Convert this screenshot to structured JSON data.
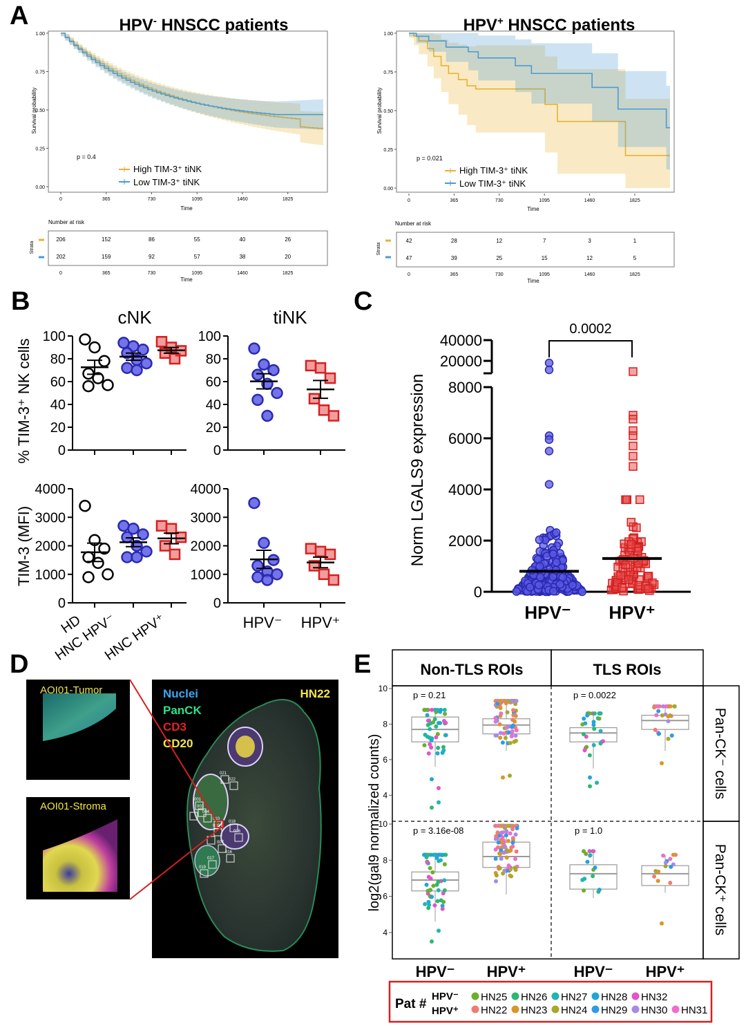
{
  "panel_letters": {
    "A": "A",
    "B": "B",
    "C": "C",
    "D": "D",
    "E": "E"
  },
  "colors": {
    "high": "#E8B230",
    "low": "#4A9BD4",
    "hd": "#000000",
    "hpvneg": "#5A5AE6",
    "hpvpos": "#E84C4C",
    "red_frame": "#D42020"
  },
  "panel_A": {
    "km": [
      {
        "title_pre": "HPV",
        "title_sup": "-",
        "title_post": " HNSCC patients",
        "ylabel": "Survival probability",
        "xlabel": "Time",
        "p": "p = 0.4",
        "legend": [
          "High TIM-3⁺ tiNK",
          "Low  TIM-3⁺ tiNK"
        ],
        "risk_title": "Number at risk",
        "strata_label": "Strata",
        "risk_high": [
          "206",
          "152",
          "86",
          "55",
          "40",
          "26"
        ],
        "risk_low": [
          "202",
          "159",
          "92",
          "57",
          "38",
          "20"
        ]
      },
      {
        "title_pre": "HPV",
        "title_sup": "+",
        "title_post": " HNSCC patients",
        "ylabel": "Survival probability",
        "xlabel": "Time",
        "p": "p = 0.021",
        "legend": [
          "High TIM-3⁺ tiNK",
          "Low  TIM-3⁺ tiNK"
        ],
        "risk_title": "Number at risk",
        "strata_label": "Strata",
        "risk_high": [
          "42",
          "28",
          "12",
          "7",
          "3",
          "1"
        ],
        "risk_low": [
          "47",
          "39",
          "25",
          "15",
          "12",
          "5"
        ]
      }
    ],
    "x_ticks": [
      "0",
      "365",
      "730",
      "1095",
      "1460",
      "1825"
    ],
    "y_ticks": [
      "0.00",
      "0.25",
      "0.50",
      "0.75",
      "1.00"
    ]
  },
  "panel_B": {
    "col_titles": [
      "cNK",
      "tiNK"
    ],
    "ylabel_top": "% TIM-3⁺ NK cells",
    "ylabel_bottom": "TIM-3 (MFI)",
    "y_ticks_top": [
      "0",
      "20",
      "40",
      "60",
      "80",
      "100"
    ],
    "y_ticks_bottom": [
      "0",
      "1000",
      "2000",
      "3000",
      "4000"
    ],
    "x_labels_cnk": [
      "HD",
      "HNC HPV⁻",
      "HNC HPV⁺"
    ],
    "x_labels_tink": [
      "HPV⁻",
      "HPV⁺"
    ]
  },
  "panel_C": {
    "ylabel": "Norm LGALS9 expression",
    "y_ticks": [
      "0",
      "2000",
      "4000",
      "6000",
      "8000",
      "20000",
      "40000"
    ],
    "p_value": "0.0002",
    "x_labels": [
      "HPV⁻",
      "HPV⁺"
    ]
  },
  "panel_D": {
    "inset_labels": [
      "AOI01-Tumor",
      "AOI01-Stroma"
    ],
    "legend": [
      "Nuclei",
      "PanCK",
      "CD3",
      "CD20"
    ],
    "sample": "HN22",
    "roi_labels": [
      "021",
      "022",
      "001",
      "003",
      "004",
      "010",
      "018",
      "006",
      "007",
      "016",
      "017",
      "019",
      "020"
    ]
  },
  "panel_E": {
    "col_headers": [
      "Non-TLS ROIs",
      "TLS ROIs"
    ],
    "row_headers": [
      "Pan-CK⁻ cells",
      "Pan-CK⁺ cells"
    ],
    "ylabel": "log2(gal9 normalized counts)",
    "y_ticks": [
      "4",
      "6",
      "8",
      "10"
    ],
    "p_values": [
      "p = 0.21",
      "p = 0.0022",
      "p = 3.16e-08",
      "p = 1.0"
    ],
    "x_labels": [
      "HPV⁻",
      "HPV⁺",
      "HPV⁻",
      "HPV⁺"
    ],
    "legend_title": "Pat #",
    "legend_hpvneg_label": "HPV⁻",
    "legend_hpvpos_label": "HPV⁺",
    "legend_hpvneg": [
      {
        "id": "HN25",
        "color": "#6BAF2A"
      },
      {
        "id": "HN26",
        "color": "#2CB872"
      },
      {
        "id": "HN27",
        "color": "#20B5B0"
      },
      {
        "id": "HN28",
        "color": "#1FA6D8"
      },
      {
        "id": "HN32",
        "color": "#E055C8"
      }
    ],
    "legend_hpvpos": [
      {
        "id": "HN22",
        "color": "#F07B74"
      },
      {
        "id": "HN23",
        "color": "#D9962A"
      },
      {
        "id": "HN24",
        "color": "#A8A82A"
      },
      {
        "id": "HN29",
        "color": "#2F9AE8"
      },
      {
        "id": "HN30",
        "color": "#A889E6"
      },
      {
        "id": "HN31",
        "color": "#EE6DCF"
      }
    ]
  }
}
